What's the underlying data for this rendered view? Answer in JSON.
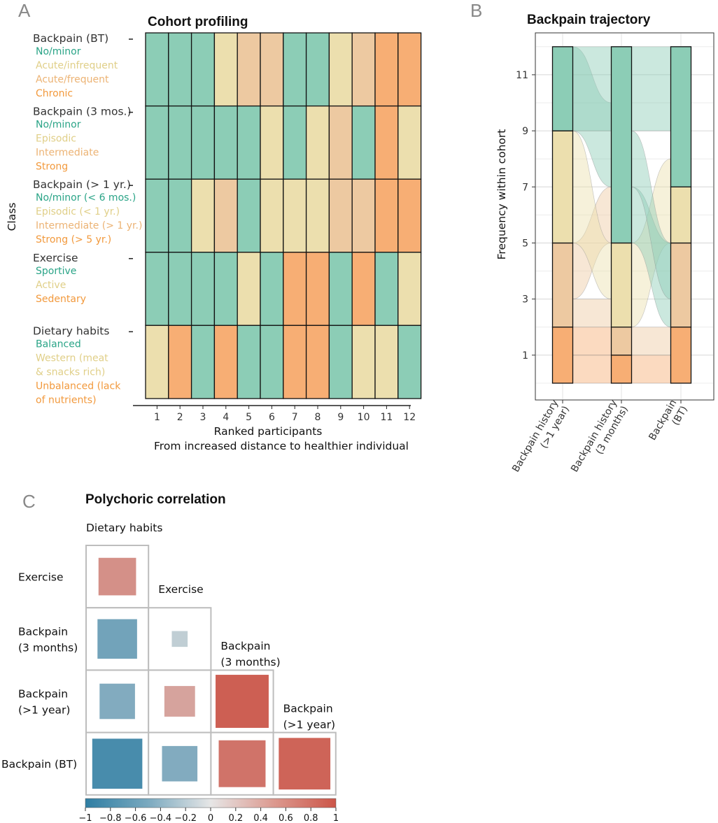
{
  "colors": {
    "level1": "#8ccdb6",
    "level2": "#ecdfae",
    "level3": "#edc9a1",
    "level4": "#f7ae74",
    "text1": "#2aa487",
    "text2": "#e0cf88",
    "text3": "#ecb374",
    "text4": "#f2993c",
    "neg": "#4a89a6",
    "pos": "#cf6a5f",
    "mid": "#dddddd"
  },
  "panel_letters": {
    "a": "A",
    "b": "B",
    "c": "C"
  },
  "chart_data": [
    {
      "id": "A",
      "type": "heatmap",
      "title": "Cohort profiling",
      "ylabel": "Class",
      "xlabel": "Ranked participants",
      "xlabel2": "From increased distance to healthier individual",
      "participants": [
        "1",
        "2",
        "3",
        "4",
        "5",
        "6",
        "7",
        "8",
        "9",
        "10",
        "11",
        "12"
      ],
      "rows": [
        {
          "name": "Backpain (BT)",
          "levels": [
            "No/minor",
            "Acute/infrequent",
            "Acute/frequent",
            "Chronic"
          ],
          "color_map": [
            1,
            2,
            3,
            4
          ],
          "values": [
            1,
            1,
            1,
            2,
            3,
            3,
            1,
            1,
            2,
            3,
            4,
            4
          ]
        },
        {
          "name": "Backpain (3 mos.)",
          "levels": [
            "No/minor",
            "Episodic",
            "Intermediate",
            "Strong"
          ],
          "color_map": [
            1,
            2,
            3,
            4
          ],
          "values": [
            1,
            1,
            1,
            1,
            1,
            2,
            1,
            2,
            3,
            1,
            4,
            2
          ]
        },
        {
          "name": "Backpain (> 1 yr.)",
          "levels": [
            "No/minor (< 6 mos.)",
            "Episodic (< 1 yr.)",
            "Intermediate (> 1 yr.)",
            "Strong (> 5 yr.)"
          ],
          "color_map": [
            1,
            2,
            3,
            4
          ],
          "values": [
            1,
            1,
            2,
            3,
            1,
            2,
            2,
            2,
            3,
            3,
            4,
            4
          ]
        },
        {
          "name": "Exercise",
          "levels": [
            "Sportive",
            "Active",
            "Sedentary"
          ],
          "color_map": [
            1,
            2,
            4
          ],
          "values": [
            1,
            1,
            1,
            1,
            2,
            1,
            3,
            3,
            1,
            3,
            1,
            2
          ]
        },
        {
          "name": "Dietary habits",
          "levels": [
            "Balanced",
            "Western (meat & snacks rich)",
            "Unbalanced (lack of nutrients)"
          ],
          "color_map": [
            1,
            2,
            4
          ],
          "values": [
            2,
            3,
            1,
            3,
            1,
            1,
            3,
            3,
            1,
            2,
            2,
            1
          ]
        }
      ]
    },
    {
      "id": "B",
      "type": "alluvial",
      "title": "Backpain trajectory",
      "ylabel": "Frequency within cohort",
      "yticks": [
        1,
        3,
        5,
        7,
        9,
        11
      ],
      "ylim": [
        0,
        12
      ],
      "axes": [
        "Backpain history (>1 year)",
        "Backpain history (3 months)",
        "Backpain (BT)"
      ],
      "stacks": [
        [
          {
            "level": 4,
            "count": 2
          },
          {
            "level": 3,
            "count": 3
          },
          {
            "level": 2,
            "count": 4
          },
          {
            "level": 1,
            "count": 3
          }
        ],
        [
          {
            "level": 4,
            "count": 1
          },
          {
            "level": 3,
            "count": 1
          },
          {
            "level": 2,
            "count": 3
          },
          {
            "level": 1,
            "count": 7
          }
        ],
        [
          {
            "level": 4,
            "count": 2
          },
          {
            "level": 3,
            "count": 3
          },
          {
            "level": 2,
            "count": 2
          },
          {
            "level": 1,
            "count": 5
          }
        ]
      ]
    },
    {
      "id": "C",
      "type": "correlation_matrix",
      "title": "Polychoric correlation",
      "variables": [
        "Dietary habits",
        "Exercise",
        "Backpain (3 months)",
        "Backpain (>1 year)",
        "Backpain (BT)"
      ],
      "row_labels": [
        "Exercise",
        "Backpain (3 months)",
        "Backpain (>1 year)",
        "Backpain (BT)"
      ],
      "diag_labels": [
        "Exercise",
        "Backpain (3 months)",
        "Backpain (>1 year)"
      ],
      "top_label": "Dietary habits",
      "matrix": [
        [
          0.45
        ],
        [
          -0.5,
          -0.08
        ],
        [
          -0.4,
          0.3,
          0.9
        ],
        [
          -0.8,
          -0.4,
          0.7,
          0.85
        ]
      ],
      "colorbar_ticks": [
        "−1",
        "−0.8",
        "−0.6",
        "−0.4",
        "−0.2",
        "0",
        "0.2",
        "0.4",
        "0.6",
        "0.8",
        "1"
      ]
    }
  ]
}
